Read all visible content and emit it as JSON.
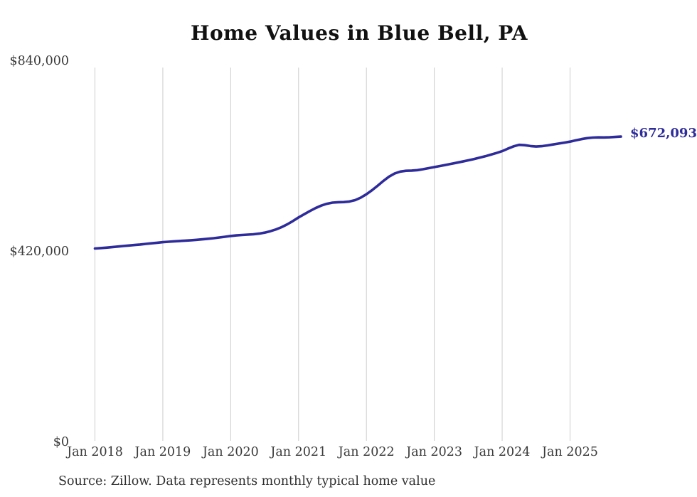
{
  "title": "Home Values in Blue Bell, PA",
  "source_note": "Source: Zillow. Data represents monthly typical home value",
  "colors": {
    "line": "#2e2b9b",
    "end_label": "#2e2b9b",
    "grid": "#cccccc",
    "tick_text": "#3a3a3a",
    "title_text": "#111111",
    "background": "#ffffff"
  },
  "chart_data": {
    "type": "line",
    "title": "Home Values in Blue Bell, PA",
    "series_name": "Typical home value",
    "frequency": "monthly",
    "start_month": "Jan 2018",
    "end_month": "Oct 2025",
    "values": [
      425500,
      426400,
      427400,
      428500,
      429700,
      430900,
      432100,
      433200,
      434300,
      435600,
      436900,
      438200,
      439500,
      440400,
      441300,
      442100,
      442900,
      443700,
      444600,
      445700,
      446900,
      448200,
      449700,
      451300,
      453000,
      454300,
      455300,
      456000,
      456800,
      458200,
      460500,
      463500,
      467500,
      472500,
      478800,
      486000,
      494000,
      501000,
      508000,
      514500,
      520000,
      524000,
      526500,
      527500,
      527800,
      529000,
      532000,
      537500,
      545000,
      554000,
      564000,
      574500,
      584000,
      591000,
      595000,
      596800,
      597300,
      598200,
      600200,
      602500,
      605000,
      607300,
      609700,
      612200,
      614700,
      617200,
      619800,
      622600,
      625600,
      628800,
      632300,
      636000,
      640000,
      645500,
      650500,
      654000,
      653200,
      651300,
      650200,
      651000,
      652800,
      654800,
      656800,
      658900,
      661000,
      663800,
      666500,
      668700,
      669900,
      670400,
      670200,
      670600,
      671300,
      672093
    ],
    "x_ticks": [
      {
        "month_index": 0,
        "label": "Jan 2018"
      },
      {
        "month_index": 12,
        "label": "Jan 2019"
      },
      {
        "month_index": 24,
        "label": "Jan 2020"
      },
      {
        "month_index": 36,
        "label": "Jan 2021"
      },
      {
        "month_index": 48,
        "label": "Jan 2022"
      },
      {
        "month_index": 60,
        "label": "Jan 2023"
      },
      {
        "month_index": 72,
        "label": "Jan 2024"
      },
      {
        "month_index": 84,
        "label": "Jan 2025"
      }
    ],
    "y_ticks": [
      {
        "value": 0,
        "label": "$0"
      },
      {
        "value": 420000,
        "label": "$420,000"
      },
      {
        "value": 840000,
        "label": "$840,000"
      }
    ],
    "ylim": [
      0,
      840000
    ],
    "grid": "vertical-only",
    "legend": "none",
    "end_value": 672093,
    "end_label": "$672,093"
  }
}
